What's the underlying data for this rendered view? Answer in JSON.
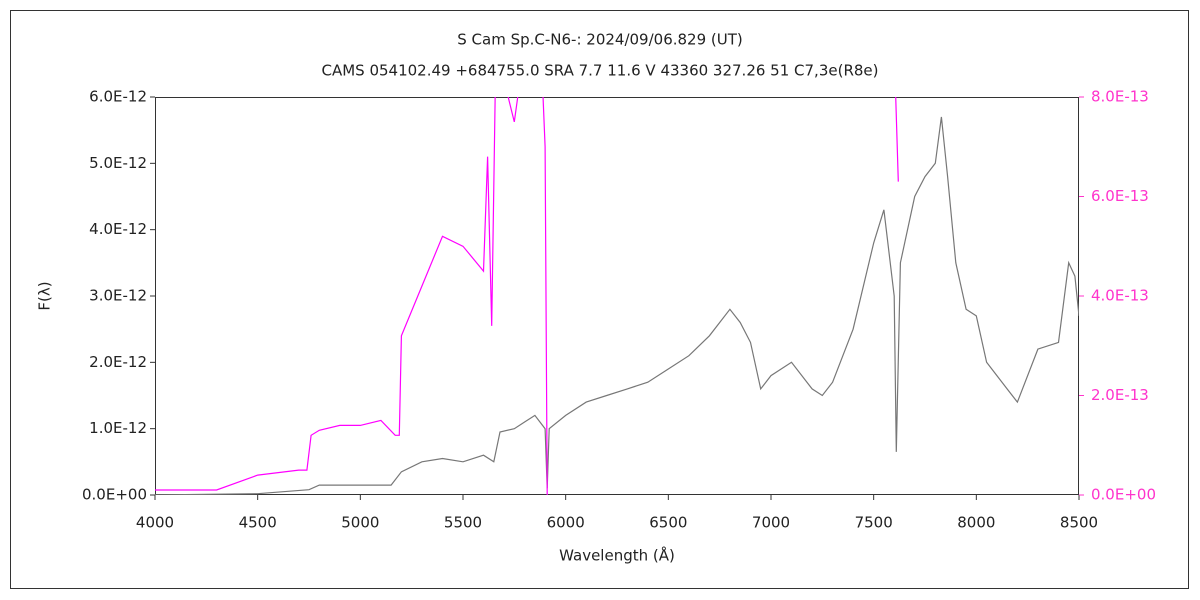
{
  "chart_data": {
    "type": "line",
    "title": "S Cam    Sp.C-N6-:   2024/09/06.829 (UT)",
    "subtitle": "CAMS 054102.49 +684755.0 SRA 7.7 11.6 V 43360 327.26 51 C7,3e(R8e)",
    "xlabel": "Wavelength (Å)",
    "ylabel": "F(λ)",
    "xlim": [
      4000,
      8500
    ],
    "xticks": [
      4000,
      4500,
      5000,
      5500,
      6000,
      6500,
      7000,
      7500,
      8000,
      8500
    ],
    "ylim": [
      0,
      6e-12
    ],
    "yticks": [
      {
        "value": 0,
        "label": "0.0E+00"
      },
      {
        "value": 1e-12,
        "label": "1.0E-12"
      },
      {
        "value": 2e-12,
        "label": "2.0E-12"
      },
      {
        "value": 3e-12,
        "label": "3.0E-12"
      },
      {
        "value": 4e-12,
        "label": "4.0E-12"
      },
      {
        "value": 5e-12,
        "label": "5.0E-12"
      },
      {
        "value": 6e-12,
        "label": "6.0E-12"
      }
    ],
    "y2lim": [
      0,
      8e-13
    ],
    "y2ticks": [
      {
        "value": 0,
        "label": "0.0E+00"
      },
      {
        "value": 2e-13,
        "label": "2.0E-13"
      },
      {
        "value": 4e-13,
        "label": "4.0E-13"
      },
      {
        "value": 6e-13,
        "label": "6.0E-13"
      },
      {
        "value": 8e-13,
        "label": "8.0E-13"
      }
    ],
    "y2color": "#ff33cc",
    "series": [
      {
        "color": "#777777",
        "x": [
          4000,
          4500,
          4750,
          4800,
          5000,
          5150,
          5200,
          5300,
          5400,
          5500,
          5600,
          5650,
          5680,
          5750,
          5800,
          5850,
          5900,
          5910,
          5920,
          6000,
          6100,
          6200,
          6300,
          6400,
          6500,
          6600,
          6700,
          6800,
          6850,
          6900,
          6950,
          7000,
          7100,
          7200,
          7250,
          7300,
          7400,
          7500,
          7550,
          7600,
          7610,
          7630,
          7700,
          7750,
          7800,
          7830,
          7860,
          7900,
          7950,
          8000,
          8050,
          8100,
          8150,
          8200,
          8300,
          8400,
          8450,
          8480,
          8500
        ],
        "values": [
          0,
          2e-14,
          8e-14,
          1.5e-13,
          1.5e-13,
          1.5e-13,
          3.5e-13,
          5e-13,
          5.5e-13,
          5e-13,
          6e-13,
          5e-13,
          9.5e-13,
          1e-12,
          1.1e-12,
          1.2e-12,
          1e-12,
          1e-13,
          1e-12,
          1.2e-12,
          1.4e-12,
          1.5e-12,
          1.6e-12,
          1.7e-12,
          1.9e-12,
          2.1e-12,
          2.4e-12,
          2.8e-12,
          2.6e-12,
          2.3e-12,
          1.6e-12,
          1.8e-12,
          2e-12,
          1.6e-12,
          1.5e-12,
          1.7e-12,
          2.5e-12,
          3.8e-12,
          4.3e-12,
          3e-12,
          6.5e-13,
          3.5e-12,
          4.5e-12,
          4.8e-12,
          5e-12,
          5.7e-12,
          4.8e-12,
          3.5e-12,
          2.8e-12,
          2.7e-12,
          2e-12,
          1.8e-12,
          1.6e-12,
          1.4e-12,
          2.2e-12,
          2.3e-12,
          3.5e-12,
          3.3e-12,
          2.7e-12
        ]
      },
      {
        "color": "#ff00ff",
        "axis": "y2",
        "x": [
          4000,
          4300,
          4500,
          4700,
          4740,
          4760,
          4800,
          4900,
          5000,
          5100,
          5170,
          5190,
          5200,
          5300,
          5400,
          5500,
          5600,
          5620,
          5640,
          5660,
          5750,
          5800,
          5880,
          5900,
          5910,
          5920,
          7600,
          7620
        ],
        "values": [
          1e-14,
          1e-14,
          4e-14,
          5e-14,
          5e-14,
          1.2e-13,
          1.3e-13,
          1.4e-13,
          1.4e-13,
          1.5e-13,
          1.2e-13,
          1.2e-13,
          3.2e-13,
          4.2e-13,
          5.2e-13,
          5e-13,
          4.5e-13,
          6.8e-13,
          3.4e-13,
          9e-13,
          7.5e-13,
          9e-13,
          9e-13,
          7e-13,
          0,
          null,
          9e-13,
          6.3e-13
        ]
      }
    ]
  }
}
